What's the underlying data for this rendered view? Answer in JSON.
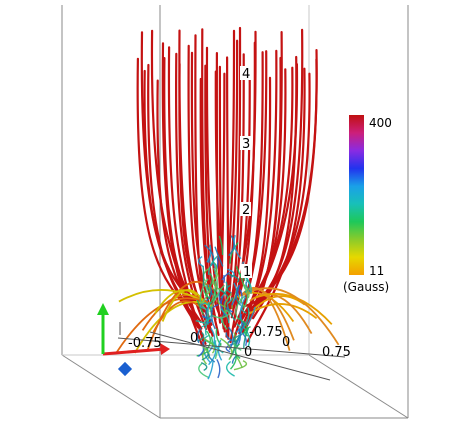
{
  "colorbar": {
    "max_label": "400",
    "min_label": "11",
    "unit_label": "(Gauss)",
    "colors": [
      "#f4a000",
      "#e6d800",
      "#8acb2a",
      "#1ec85a",
      "#18c0b8",
      "#1aa0e8",
      "#2233ee",
      "#8a2be2",
      "#cc1f7a",
      "#c01010"
    ]
  },
  "height_labels": [
    "1",
    "2",
    "3",
    "4"
  ],
  "axis_tick_labels": {
    "x_left": "-0.75",
    "origin_left": "0",
    "y_back": "-0.75",
    "origin_right": "0",
    "origin_bottom": "0",
    "x_right": "0.75"
  },
  "orientation_triad": {
    "colors": {
      "x": "#e02020",
      "y": "#20d020",
      "z": "#1a5fd0"
    }
  },
  "field_line_color": "#c41212"
}
